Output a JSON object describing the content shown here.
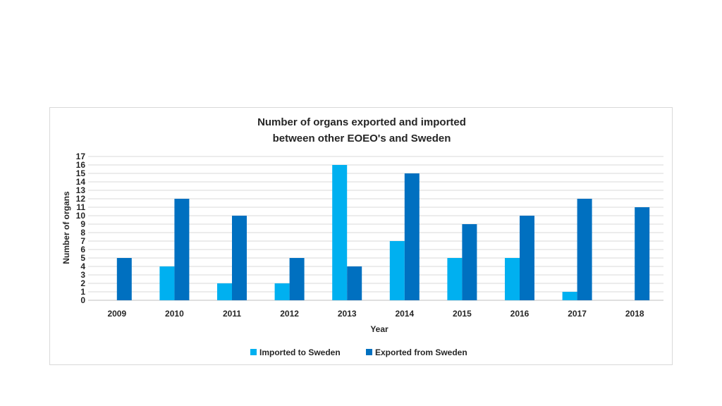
{
  "chart_data": {
    "type": "bar",
    "title_lines": [
      "Number of organs exported and imported",
      "between other EOEO's and Sweden"
    ],
    "xlabel": "Year",
    "ylabel": "Number of organs",
    "ylim": [
      0,
      17
    ],
    "yticks": [
      0,
      1,
      2,
      3,
      4,
      5,
      6,
      7,
      8,
      9,
      10,
      11,
      12,
      13,
      14,
      15,
      16,
      17
    ],
    "grid": true,
    "legend_position": "bottom",
    "categories": [
      "2009",
      "2010",
      "2011",
      "2012",
      "2013",
      "2014",
      "2015",
      "2016",
      "2017",
      "2018"
    ],
    "series": [
      {
        "name": "Imported to Sweden",
        "color": "#00b0f0",
        "values": [
          0,
          4,
          2,
          2,
          16,
          7,
          5,
          5,
          1,
          0
        ]
      },
      {
        "name": "Exported from Sweden",
        "color": "#0070c0",
        "values": [
          5,
          12,
          10,
          5,
          4,
          15,
          9,
          10,
          12,
          11
        ]
      }
    ]
  }
}
